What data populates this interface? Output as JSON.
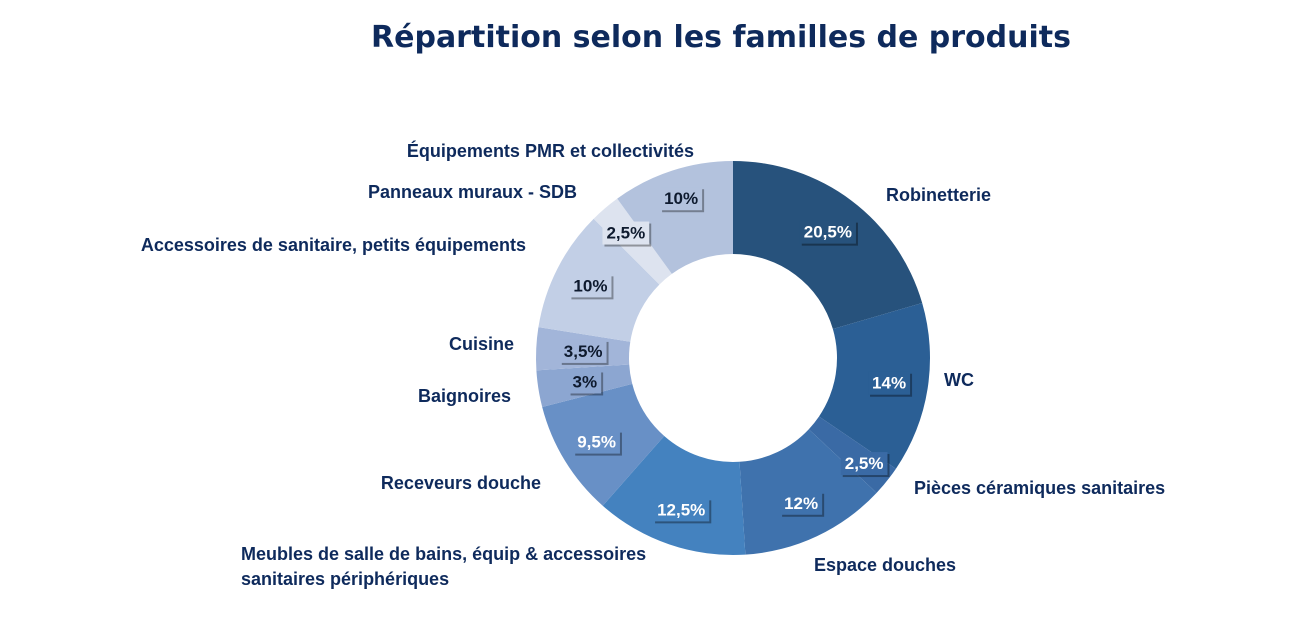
{
  "chart_data": {
    "type": "pie",
    "variant": "donut",
    "title": "Répartition selon les familles de produits",
    "slices": [
      {
        "label": "Robinetterie",
        "value": 20.5,
        "display": "20,5%",
        "color": "#27527c",
        "text_color": "#ffffff"
      },
      {
        "label": "WC",
        "value": 14,
        "display": "14%",
        "color": "#2b5f95",
        "text_color": "#ffffff"
      },
      {
        "label": "Pièces céramiques sanitaires",
        "value": 2.5,
        "display": "2,5%",
        "color": "#3a6aa5",
        "text_color": "#ffffff"
      },
      {
        "label": "Espace douches",
        "value": 12,
        "display": "12%",
        "color": "#3f72ad",
        "text_color": "#ffffff"
      },
      {
        "label": "Meubles de salle de bains, équip & accessoires sanitaires périphériques",
        "label_lines": [
          "Meubles de salle de bains, équip & accessoires",
          "sanitaires périphériques"
        ],
        "value": 12.5,
        "display": "12,5%",
        "color": "#4482bf",
        "text_color": "#ffffff"
      },
      {
        "label": "Receveurs douche",
        "value": 9.5,
        "display": "9,5%",
        "color": "#6890c6",
        "text_color": "#ffffff"
      },
      {
        "label": "Baignoires",
        "value": 3,
        "display": "3%",
        "color": "#8ca6d1",
        "text_color": "#0e1a2e"
      },
      {
        "label": "Cuisine",
        "value": 3.5,
        "display": "3,5%",
        "color": "#a2b5d9",
        "text_color": "#0e1a2e"
      },
      {
        "label": "Accessoires de sanitaire, petits équipements",
        "value": 10,
        "display": "10%",
        "color": "#c2cfe6",
        "text_color": "#0e1a2e"
      },
      {
        "label": "Panneaux muraux - SDB",
        "value": 2.5,
        "display": "2,5%",
        "color": "#dde3ef",
        "text_color": "#0e1a2e"
      },
      {
        "label": "Équipements PMR et collectivités",
        "value": 10,
        "display": "10%",
        "color": "#b3c2dd",
        "text_color": "#0e1a2e"
      }
    ],
    "legend": "none"
  }
}
